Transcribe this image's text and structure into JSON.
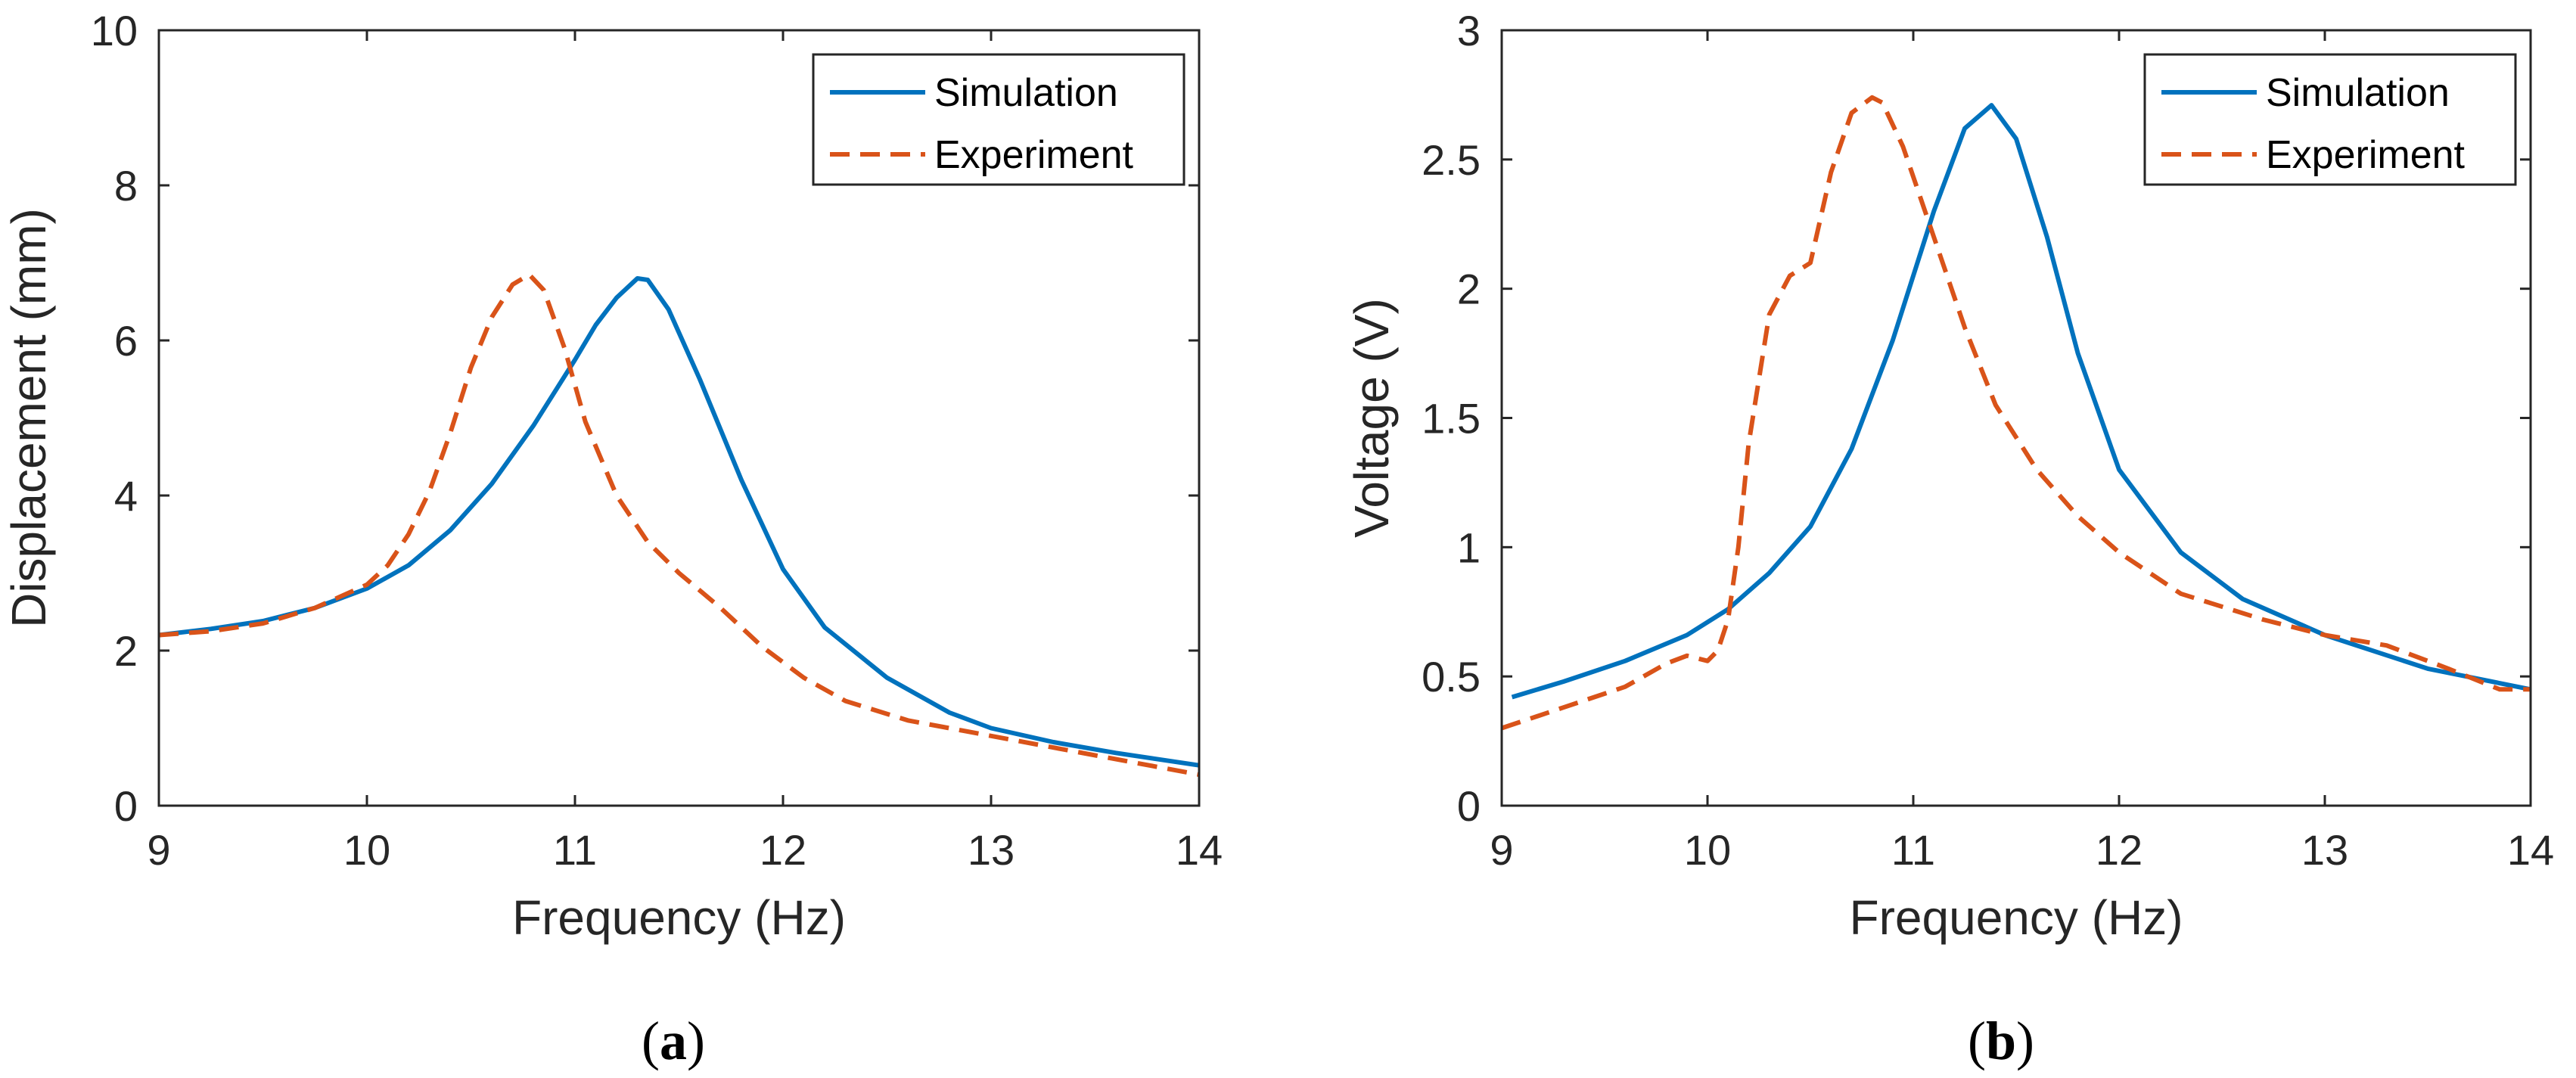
{
  "colors": {
    "simulation": "#0072BD",
    "experiment": "#D95319",
    "axis": "#262626"
  },
  "chart_data": [
    {
      "type": "line",
      "caption_letter": "a",
      "xlabel": "Frequency (Hz)",
      "ylabel": "Displacement (mm)",
      "xlim": [
        9,
        14
      ],
      "ylim": [
        0,
        10
      ],
      "xticks": [
        9,
        10,
        11,
        12,
        13,
        14
      ],
      "yticks": [
        0,
        2,
        4,
        6,
        8,
        10
      ],
      "grid": false,
      "legend_position": "top-right",
      "series": [
        {
          "name": "Simulation",
          "style": "solid",
          "x": [
            9.0,
            9.25,
            9.5,
            9.75,
            10.0,
            10.2,
            10.4,
            10.6,
            10.8,
            11.0,
            11.1,
            11.2,
            11.3,
            11.35,
            11.45,
            11.6,
            11.8,
            12.0,
            12.2,
            12.5,
            12.8,
            13.0,
            13.3,
            13.6,
            14.0
          ],
          "y": [
            2.2,
            2.28,
            2.38,
            2.55,
            2.8,
            3.1,
            3.55,
            4.15,
            4.9,
            5.75,
            6.2,
            6.55,
            6.8,
            6.78,
            6.4,
            5.5,
            4.2,
            3.05,
            2.3,
            1.65,
            1.2,
            1.0,
            0.82,
            0.68,
            0.52
          ]
        },
        {
          "name": "Experiment",
          "style": "dashed",
          "x": [
            9.0,
            9.25,
            9.5,
            9.75,
            10.0,
            10.1,
            10.2,
            10.3,
            10.4,
            10.5,
            10.6,
            10.7,
            10.78,
            10.85,
            10.95,
            11.05,
            11.2,
            11.35,
            11.5,
            11.7,
            11.9,
            12.1,
            12.3,
            12.6,
            13.0,
            13.4,
            14.0
          ],
          "y": [
            2.2,
            2.25,
            2.35,
            2.55,
            2.85,
            3.1,
            3.5,
            4.05,
            4.8,
            5.65,
            6.3,
            6.72,
            6.85,
            6.65,
            5.9,
            4.95,
            4.0,
            3.4,
            3.0,
            2.55,
            2.05,
            1.65,
            1.35,
            1.1,
            0.9,
            0.7,
            0.4
          ]
        }
      ]
    },
    {
      "type": "line",
      "caption_letter": "b",
      "xlabel": "Frequency (Hz)",
      "ylabel": "Voltage (V)",
      "xlim": [
        9,
        14
      ],
      "ylim": [
        0,
        3
      ],
      "xticks": [
        9,
        10,
        11,
        12,
        13,
        14
      ],
      "yticks": [
        0,
        0.5,
        1,
        1.5,
        2,
        2.5,
        3
      ],
      "grid": false,
      "legend_position": "top-right",
      "series": [
        {
          "name": "Simulation",
          "style": "solid",
          "x": [
            9.05,
            9.3,
            9.6,
            9.9,
            10.1,
            10.3,
            10.5,
            10.7,
            10.9,
            11.1,
            11.25,
            11.38,
            11.5,
            11.65,
            11.8,
            12.0,
            12.3,
            12.6,
            13.0,
            13.5,
            14.0
          ],
          "y": [
            0.42,
            0.48,
            0.56,
            0.66,
            0.76,
            0.9,
            1.08,
            1.38,
            1.8,
            2.3,
            2.62,
            2.71,
            2.58,
            2.2,
            1.75,
            1.3,
            0.98,
            0.8,
            0.66,
            0.53,
            0.45
          ],
          "label_x": [
            9,
            9.5,
            10,
            10.5,
            11,
            11.5,
            12,
            12.5,
            13,
            13.5,
            14
          ]
        },
        {
          "name": "Experiment",
          "style": "dashed",
          "x": [
            9.0,
            9.3,
            9.6,
            9.8,
            9.9,
            10.0,
            10.05,
            10.1,
            10.15,
            10.2,
            10.3,
            10.4,
            10.5,
            10.6,
            10.7,
            10.8,
            10.85,
            10.95,
            11.1,
            11.25,
            11.4,
            11.6,
            11.8,
            12.0,
            12.3,
            12.7,
            13.0,
            13.3,
            13.6,
            13.85,
            14.0
          ],
          "y": [
            0.3,
            0.38,
            0.46,
            0.55,
            0.58,
            0.56,
            0.6,
            0.72,
            1.0,
            1.4,
            1.9,
            2.05,
            2.1,
            2.45,
            2.68,
            2.74,
            2.72,
            2.55,
            2.2,
            1.85,
            1.55,
            1.3,
            1.12,
            0.98,
            0.82,
            0.72,
            0.66,
            0.62,
            0.53,
            0.45,
            0.45
          ]
        }
      ]
    }
  ]
}
